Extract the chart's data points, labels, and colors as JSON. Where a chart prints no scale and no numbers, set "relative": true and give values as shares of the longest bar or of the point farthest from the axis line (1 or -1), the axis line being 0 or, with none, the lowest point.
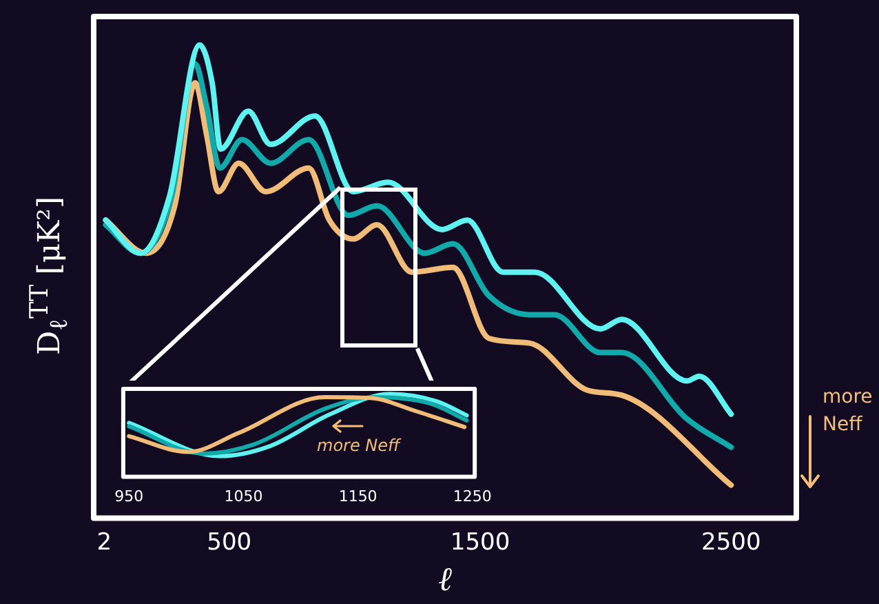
{
  "chart_data": [
    {
      "type": "line",
      "xlabel": "ℓ",
      "ylabel": "D$_{ℓ}$$^{TT}$ [μK²]",
      "annotations": [
        "more Neff"
      ],
      "relative": true,
      "xlim": [
        -40,
        2760
      ],
      "xticks": [
        2,
        500,
        1500,
        2500
      ],
      "marker": "none",
      "line_style": "solid",
      "series": [
        {
          "color": "#5ef2f0",
          "x": [
            8,
            147,
            262,
            382,
            432,
            466,
            576,
            665,
            842,
            994,
            1133,
            1348,
            1449,
            1591,
            1718,
            1979,
            2064,
            2324,
            2373,
            2500
          ],
          "values": [
            0.63,
            0.56,
            0.68,
            1.0,
            0.92,
            0.78,
            0.86,
            0.79,
            0.85,
            0.69,
            0.71,
            0.61,
            0.63,
            0.52,
            0.52,
            0.4,
            0.42,
            0.29,
            0.3,
            0.22
          ]
        },
        {
          "color": "#12a9aa",
          "x": [
            8,
            147,
            271,
            364,
            410,
            463,
            551,
            665,
            817,
            975,
            1089,
            1279,
            1392,
            1535,
            1697,
            1796,
            1979,
            2064,
            2324,
            2500
          ],
          "values": [
            0.62,
            0.56,
            0.68,
            0.96,
            0.87,
            0.74,
            0.8,
            0.75,
            0.8,
            0.64,
            0.66,
            0.56,
            0.58,
            0.47,
            0.43,
            0.43,
            0.35,
            0.35,
            0.21,
            0.15
          ]
        },
        {
          "color": "#f1bb78",
          "x": [
            8,
            169,
            283,
            364,
            410,
            457,
            538,
            646,
            817,
            899,
            994,
            1089,
            1228,
            1392,
            1535,
            1697,
            1930,
            2064,
            2500
          ],
          "values": [
            0.63,
            0.56,
            0.66,
            0.92,
            0.81,
            0.69,
            0.75,
            0.69,
            0.74,
            0.63,
            0.59,
            0.62,
            0.52,
            0.53,
            0.38,
            0.37,
            0.27,
            0.26,
            0.07
          ]
        }
      ]
    },
    {
      "type": "line",
      "annotations": [
        "more Neff"
      ],
      "relative": true,
      "xlim": [
        945,
        1252
      ],
      "xticks": [
        950,
        1050,
        1150,
        1250
      ],
      "marker": "none",
      "line_style": "solid",
      "series": [
        {
          "color": "#f1bb78",
          "x": [
            950,
            1002,
            1046,
            1121,
            1161,
            1201,
            1243
          ],
          "values": [
            0.49,
            0.3,
            0.53,
            0.96,
            0.95,
            0.79,
            0.6
          ]
        },
        {
          "color": "#12a9aa",
          "x": [
            950,
            1015,
            1059,
            1121,
            1165,
            1214,
            1245
          ],
          "values": [
            0.61,
            0.28,
            0.39,
            0.82,
            0.96,
            0.88,
            0.68
          ]
        },
        {
          "color": "#5ef2f0",
          "x": [
            950,
            1029,
            1073,
            1125,
            1178,
            1219,
            1245
          ],
          "values": [
            0.65,
            0.25,
            0.37,
            0.75,
            1.0,
            0.91,
            0.74
          ]
        }
      ]
    }
  ]
}
